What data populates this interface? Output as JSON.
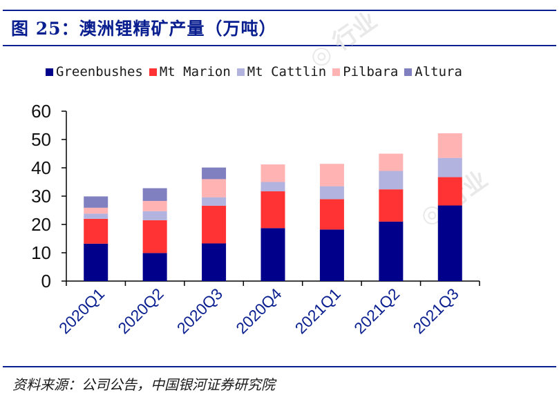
{
  "header": {
    "title": "图 25：澳洲锂精矿产量（万吨）"
  },
  "footer": {
    "source": "资料来源：公司公告，中国银河证券研究院"
  },
  "chart_data": {
    "type": "bar",
    "stacked": true,
    "title": "",
    "xlabel": "",
    "ylabel": "",
    "categories": [
      "2020Q1",
      "2020Q2",
      "2020Q3",
      "2020Q4",
      "2021Q1",
      "2021Q2",
      "2021Q3"
    ],
    "ylim": [
      0,
      60
    ],
    "yticks": [
      "0",
      "10",
      "20",
      "30",
      "40",
      "50",
      "60"
    ],
    "grid": false,
    "legend_position": "top",
    "series": [
      {
        "name": "Greenbushes",
        "color": "#00008b",
        "values": [
          13.2,
          9.9,
          13.3,
          18.7,
          18.2,
          21.0,
          26.7
        ]
      },
      {
        "name": "Mt Marion",
        "color": "#ff3333",
        "values": [
          8.8,
          11.6,
          13.3,
          13.0,
          10.7,
          11.4,
          10.0
        ]
      },
      {
        "name": "Mt Cattlin",
        "color": "#b3b3e0",
        "values": [
          1.8,
          3.2,
          3.0,
          3.3,
          4.6,
          6.5,
          6.8
        ]
      },
      {
        "name": "Pilbara",
        "color": "#ffb3b3",
        "values": [
          2.1,
          3.6,
          6.4,
          6.2,
          7.9,
          6.1,
          8.7
        ]
      },
      {
        "name": "Altura",
        "color": "#8080c0",
        "values": [
          4.0,
          4.5,
          4.1,
          0,
          0,
          0,
          0
        ]
      }
    ]
  }
}
